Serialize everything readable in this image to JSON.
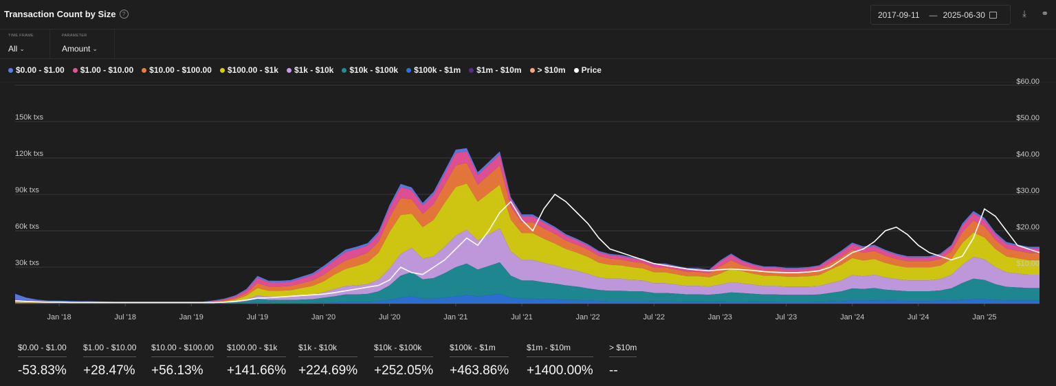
{
  "header": {
    "title": "Transaction Count by Size",
    "date_start": "2017-09-11",
    "date_end": "2025-06-30"
  },
  "filters": {
    "timeframe": {
      "caption": "TIME FRAME",
      "value": "All"
    },
    "parameter": {
      "caption": "PARAMETER",
      "value": "Amount"
    }
  },
  "colors": {
    "s0": "#5b7ce6",
    "s1": "#e8519a",
    "s2": "#ee7a3d",
    "s3": "#d8cf12",
    "s4": "#c79ee6",
    "s5": "#1f8c96",
    "s6": "#2c72db",
    "s7": "#5a2a8c",
    "s8": "#f2a87a",
    "price": "#ffffff"
  },
  "legend": [
    {
      "label": "$0.00 - $1.00",
      "color": "#5b7ce6"
    },
    {
      "label": "$1.00 - $10.00",
      "color": "#e8519a"
    },
    {
      "label": "$10.00 - $100.00",
      "color": "#ee7a3d"
    },
    {
      "label": "$100.00 - $1k",
      "color": "#d8cf12"
    },
    {
      "label": "$1k - $10k",
      "color": "#c79ee6"
    },
    {
      "label": "$10k - $100k",
      "color": "#1f8c96"
    },
    {
      "label": "$100k - $1m",
      "color": "#2c72db"
    },
    {
      "label": "$1m - $10m",
      "color": "#5a2a8c"
    },
    {
      "label": "> $10m",
      "color": "#f2a87a"
    },
    {
      "label": "Price",
      "color": "#ffffff"
    }
  ],
  "stats": [
    {
      "label": "$0.00 - $1.00",
      "value": "-53.83%"
    },
    {
      "label": "$1.00 - $10.00",
      "value": "+28.47%"
    },
    {
      "label": "$10.00 - $100.00",
      "value": "+56.13%"
    },
    {
      "label": "$100.00 - $1k",
      "value": "+141.66%"
    },
    {
      "label": "$1k - $10k",
      "value": "+224.69%"
    },
    {
      "label": "$10k - $100k",
      "value": "+252.05%"
    },
    {
      "label": "$100k - $1m",
      "value": "+463.86%"
    },
    {
      "label": "$1m - $10m",
      "value": "+1400.00%"
    },
    {
      "label": "> $10m",
      "value": "--"
    }
  ],
  "chart_data": {
    "type": "area",
    "stacked": true,
    "x": [
      "2017-09",
      "2017-10",
      "2017-11",
      "2017-12",
      "2018-01",
      "2018-02",
      "2018-03",
      "2018-04",
      "2018-05",
      "2018-06",
      "2018-07",
      "2018-08",
      "2018-09",
      "2018-10",
      "2018-11",
      "2018-12",
      "2019-01",
      "2019-02",
      "2019-03",
      "2019-04",
      "2019-05",
      "2019-06",
      "2019-07",
      "2019-08",
      "2019-09",
      "2019-10",
      "2019-11",
      "2019-12",
      "2020-01",
      "2020-02",
      "2020-03",
      "2020-04",
      "2020-05",
      "2020-06",
      "2020-07",
      "2020-08",
      "2020-09",
      "2020-10",
      "2020-11",
      "2020-12",
      "2021-01",
      "2021-02",
      "2021-03",
      "2021-04",
      "2021-05",
      "2021-06",
      "2021-07",
      "2021-08",
      "2021-09",
      "2021-10",
      "2021-11",
      "2021-12",
      "2022-01",
      "2022-02",
      "2022-03",
      "2022-04",
      "2022-05",
      "2022-06",
      "2022-07",
      "2022-08",
      "2022-09",
      "2022-10",
      "2022-11",
      "2022-12",
      "2023-01",
      "2023-02",
      "2023-03",
      "2023-04",
      "2023-05",
      "2023-06",
      "2023-07",
      "2023-08",
      "2023-09",
      "2023-10",
      "2023-11",
      "2023-12",
      "2024-01",
      "2024-02",
      "2024-03",
      "2024-04",
      "2024-05",
      "2024-06",
      "2024-07",
      "2024-08",
      "2024-09",
      "2024-10",
      "2024-11",
      "2024-12",
      "2025-01",
      "2025-02",
      "2025-03",
      "2025-04",
      "2025-05",
      "2025-06"
    ],
    "x_ticks": [
      "Jan '18",
      "Jul '18",
      "Jan '19",
      "Jul '19",
      "Jan '20",
      "Jul '20",
      "Jan '21",
      "Jul '21",
      "Jan '22",
      "Jul '22",
      "Jan '23",
      "Jul '23",
      "Jan '24",
      "Jul '24",
      "Jan '25"
    ],
    "x_tick_dates": [
      "2018-01",
      "2018-07",
      "2019-01",
      "2019-07",
      "2020-01",
      "2020-07",
      "2021-01",
      "2021-07",
      "2022-01",
      "2022-07",
      "2023-01",
      "2023-07",
      "2024-01",
      "2024-07",
      "2025-01"
    ],
    "y_left": {
      "ticks": [
        "30k txs",
        "60k txs",
        "90k txs",
        "120k txs",
        "150k txs"
      ],
      "tick_values": [
        30000,
        60000,
        90000,
        120000,
        150000
      ],
      "range": [
        0,
        180000
      ]
    },
    "y_right": {
      "ticks": [
        "$10.00",
        "$20.00",
        "$30.00",
        "$40.00",
        "$50.00",
        "$60.00"
      ],
      "tick_values": [
        10,
        20,
        30,
        40,
        50,
        60
      ],
      "range": [
        0,
        60
      ]
    },
    "grid": true,
    "legend_position": "top-left",
    "series": [
      {
        "name": "$100k - $1m",
        "values": [
          300,
          200,
          200,
          200,
          200,
          200,
          200,
          200,
          100,
          100,
          100,
          100,
          100,
          100,
          100,
          100,
          100,
          100,
          100,
          200,
          300,
          500,
          800,
          600,
          500,
          500,
          500,
          600,
          800,
          1000,
          1500,
          1500,
          1500,
          2000,
          3000,
          5000,
          6000,
          4000,
          4000,
          5000,
          6000,
          7000,
          6000,
          7000,
          8000,
          5000,
          4000,
          4000,
          3500,
          3500,
          3000,
          3000,
          2500,
          2200,
          2000,
          2000,
          2000,
          2000,
          1800,
          1800,
          1700,
          1600,
          1600,
          1500,
          1600,
          1700,
          1700,
          1600,
          1500,
          1500,
          1400,
          1400,
          1400,
          1500,
          1800,
          2000,
          2500,
          2500,
          2800,
          2500,
          2300,
          2200,
          2200,
          2200,
          2300,
          2600,
          3000,
          3500,
          3500,
          3000,
          2800,
          2800,
          2800,
          2800
        ]
      },
      {
        "name": "$10k - $100k",
        "values": [
          300,
          300,
          200,
          200,
          200,
          200,
          200,
          200,
          200,
          100,
          100,
          100,
          100,
          100,
          100,
          100,
          100,
          100,
          200,
          400,
          700,
          1500,
          3000,
          2500,
          2500,
          2500,
          2800,
          3000,
          4000,
          5000,
          6000,
          6000,
          6500,
          8000,
          12000,
          18000,
          20000,
          16000,
          17000,
          20000,
          24000,
          26000,
          22000,
          24000,
          26000,
          18000,
          15000,
          15000,
          14000,
          13000,
          12000,
          11000,
          10000,
          9000,
          8500,
          8500,
          8000,
          8000,
          7000,
          7000,
          6500,
          6000,
          6000,
          5800,
          6500,
          7500,
          7000,
          6500,
          6000,
          6000,
          5800,
          5800,
          5800,
          6000,
          7000,
          8000,
          10000,
          9500,
          10000,
          9000,
          8500,
          8000,
          8000,
          8000,
          8500,
          10000,
          14000,
          17000,
          16000,
          13000,
          11000,
          10500,
          10000,
          10000
        ]
      },
      {
        "name": "$1k - $10k",
        "values": [
          300,
          300,
          200,
          200,
          200,
          200,
          200,
          200,
          200,
          200,
          200,
          200,
          200,
          200,
          200,
          200,
          200,
          200,
          300,
          500,
          800,
          1500,
          3000,
          2500,
          2500,
          2500,
          3000,
          3500,
          4500,
          6000,
          7000,
          7500,
          8000,
          10000,
          14000,
          18000,
          20000,
          17000,
          18000,
          22000,
          26000,
          28000,
          24000,
          26000,
          28000,
          20000,
          17000,
          17000,
          16000,
          15000,
          14000,
          13000,
          12000,
          10500,
          10000,
          10000,
          9500,
          9000,
          8000,
          8000,
          7500,
          7000,
          7000,
          6800,
          7500,
          8500,
          8000,
          7500,
          7000,
          7000,
          6800,
          6800,
          6800,
          7000,
          8000,
          9000,
          11000,
          10500,
          11000,
          10000,
          9500,
          9000,
          9000,
          9000,
          9500,
          11000,
          15000,
          18000,
          17000,
          14000,
          12000,
          11500,
          11000,
          11000
        ]
      },
      {
        "name": "$100.00 - $1k",
        "values": [
          800,
          600,
          500,
          400,
          400,
          400,
          300,
          300,
          300,
          300,
          300,
          300,
          300,
          300,
          300,
          300,
          300,
          300,
          500,
          800,
          1500,
          3000,
          6000,
          5000,
          5000,
          5500,
          6500,
          7500,
          9000,
          12000,
          14000,
          16000,
          18000,
          22000,
          30000,
          32000,
          28000,
          26000,
          30000,
          36000,
          40000,
          38000,
          32000,
          34000,
          36000,
          26000,
          22000,
          22000,
          20000,
          18000,
          16000,
          15000,
          14000,
          12000,
          11500,
          11000,
          10500,
          10000,
          9000,
          9000,
          8500,
          8000,
          8000,
          7500,
          9000,
          11000,
          10000,
          9000,
          8500,
          8500,
          8200,
          8200,
          8500,
          9000,
          11000,
          13000,
          14000,
          13000,
          13000,
          12000,
          11000,
          10500,
          10500,
          10500,
          11000,
          13000,
          18000,
          20000,
          18000,
          15000,
          13000,
          12500,
          12000,
          12000
        ]
      },
      {
        "name": "$10.00 - $100.00",
        "values": [
          600,
          500,
          400,
          300,
          300,
          300,
          300,
          200,
          200,
          200,
          200,
          200,
          200,
          200,
          200,
          200,
          200,
          200,
          400,
          700,
          1200,
          2000,
          4000,
          3500,
          3500,
          3500,
          4000,
          4500,
          5500,
          6000,
          7000,
          7500,
          8000,
          9000,
          12000,
          14000,
          12000,
          11000,
          13000,
          15000,
          18000,
          17000,
          14000,
          15000,
          16000,
          11000,
          9000,
          9000,
          8500,
          8000,
          7000,
          6500,
          6000,
          5500,
          5000,
          4800,
          4600,
          4400,
          4000,
          4000,
          3800,
          3600,
          3600,
          3500,
          6000,
          7000,
          5000,
          4500,
          4200,
          4200,
          4000,
          4000,
          4200,
          4500,
          5500,
          6500,
          7000,
          6500,
          6500,
          6000,
          5500,
          5200,
          5200,
          5200,
          5500,
          6500,
          9000,
          10000,
          9000,
          7500,
          6500,
          6200,
          6000,
          6000
        ]
      },
      {
        "name": "$1.00 - $10.00",
        "values": [
          800,
          600,
          500,
          400,
          400,
          300,
          300,
          300,
          300,
          300,
          300,
          300,
          300,
          300,
          300,
          300,
          300,
          300,
          600,
          900,
          1500,
          2500,
          4500,
          3500,
          3500,
          3500,
          4000,
          4500,
          5500,
          6000,
          7000,
          6500,
          6000,
          6500,
          8000,
          9000,
          7500,
          7000,
          8000,
          9000,
          10000,
          9500,
          8000,
          8500,
          9000,
          6000,
          5000,
          5000,
          4800,
          4500,
          4000,
          3800,
          3500,
          3200,
          3000,
          2900,
          2800,
          2700,
          2500,
          2500,
          2400,
          2300,
          2300,
          2200,
          4000,
          4500,
          3200,
          2800,
          2600,
          2600,
          2500,
          2500,
          2600,
          2800,
          3400,
          4000,
          4500,
          4000,
          4000,
          3700,
          3400,
          3200,
          3200,
          3200,
          3400,
          4000,
          5500,
          6000,
          5500,
          4600,
          4000,
          3800,
          3700,
          3700
        ]
      },
      {
        "name": "$0.00 - $1.00",
        "values": [
          5000,
          2500,
          1200,
          800,
          700,
          600,
          500,
          500,
          400,
          400,
          400,
          400,
          400,
          400,
          400,
          400,
          400,
          400,
          500,
          600,
          800,
          1000,
          1500,
          1300,
          1300,
          1300,
          1400,
          1500,
          1700,
          1800,
          2000,
          1900,
          1800,
          1900,
          2200,
          2600,
          2200,
          2000,
          2200,
          2500,
          2800,
          2600,
          2200,
          2300,
          2400,
          1700,
          1500,
          1500,
          1400,
          1300,
          1200,
          1100,
          1000,
          950,
          900,
          880,
          860,
          840,
          800,
          800,
          780,
          760,
          760,
          740,
          900,
          1000,
          850,
          800,
          780,
          780,
          760,
          760,
          780,
          800,
          950,
          1100,
          1200,
          1100,
          1100,
          1050,
          1000,
          980,
          980,
          980,
          1000,
          1200,
          1600,
          1800,
          1700,
          1500,
          1400,
          1350,
          1300,
          1300
        ]
      },
      {
        "name": "$1m - $10m",
        "values": [
          0,
          0,
          0,
          0,
          0,
          0,
          0,
          0,
          0,
          0,
          0,
          0,
          0,
          0,
          0,
          0,
          0,
          0,
          0,
          0,
          0,
          10,
          20,
          20,
          20,
          20,
          20,
          20,
          30,
          30,
          40,
          40,
          40,
          50,
          60,
          80,
          90,
          70,
          70,
          80,
          100,
          110,
          90,
          100,
          110,
          80,
          60,
          60,
          60,
          50,
          50,
          50,
          40,
          40,
          40,
          40,
          40,
          40,
          30,
          30,
          30,
          30,
          30,
          30,
          30,
          30,
          30,
          30,
          30,
          30,
          30,
          30,
          30,
          30,
          40,
          40,
          50,
          50,
          50,
          50,
          40,
          40,
          40,
          40,
          40,
          50,
          60,
          70,
          70,
          60,
          50,
          50,
          50,
          50
        ]
      },
      {
        "name": "> $10m",
        "values": [
          0,
          0,
          0,
          0,
          0,
          0,
          0,
          0,
          0,
          0,
          0,
          0,
          0,
          0,
          0,
          0,
          0,
          0,
          0,
          0,
          0,
          0,
          0,
          0,
          0,
          0,
          0,
          0,
          0,
          0,
          0,
          0,
          0,
          0,
          0,
          0,
          0,
          0,
          0,
          0,
          0,
          0,
          0,
          0,
          0,
          0,
          0,
          0,
          0,
          0,
          0,
          0,
          0,
          0,
          0,
          0,
          0,
          0,
          0,
          0,
          0,
          0,
          0,
          0,
          0,
          0,
          0,
          0,
          0,
          0,
          0,
          0,
          0,
          0,
          0,
          0,
          0,
          0,
          0,
          0,
          0,
          0,
          0,
          0,
          0,
          0,
          0,
          0,
          0,
          0,
          0,
          0,
          0,
          0
        ]
      }
    ],
    "price": {
      "name": "Price",
      "axis": "right",
      "values": [
        0.8,
        0.6,
        0.5,
        0.4,
        0.4,
        0.3,
        0.3,
        0.3,
        0.3,
        0.3,
        0.3,
        0.3,
        0.3,
        0.3,
        0.3,
        0.3,
        0.3,
        0.3,
        0.3,
        0.4,
        0.6,
        1.0,
        1.5,
        1.6,
        1.8,
        2.0,
        2.2,
        2.4,
        2.6,
        3.0,
        3.5,
        4.0,
        4.5,
        5.0,
        6.5,
        10,
        8.5,
        8,
        10,
        12,
        15,
        18,
        16,
        20,
        25,
        28,
        23,
        20,
        26,
        30,
        28,
        25,
        22,
        18,
        15,
        14,
        13,
        12,
        11,
        10.5,
        10,
        9.5,
        9.2,
        9.0,
        9.3,
        9.5,
        9.3,
        9.1,
        8.8,
        8.6,
        8.5,
        8.5,
        8.7,
        9.0,
        10,
        12,
        14,
        15,
        17,
        20,
        21,
        19,
        16,
        14,
        13,
        12,
        13,
        18,
        26,
        24,
        20,
        16,
        15,
        14
      ]
    }
  }
}
